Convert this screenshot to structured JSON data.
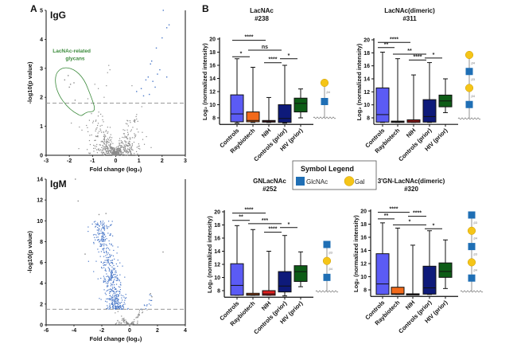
{
  "panels": {
    "A": "A",
    "B": "B"
  },
  "legend": {
    "title": "Symbol Legend",
    "items": [
      {
        "label": "GlcNAc",
        "shape": "square",
        "color": "#1f6fb5"
      },
      {
        "label": "Gal",
        "shape": "circle",
        "color": "#f5c518"
      }
    ]
  },
  "colors": {
    "nonsig_point": "#8a8a8a",
    "sig_point": "#4a78c8",
    "threshold_line": "#9a9a9a",
    "annotation": "#3a8a3a",
    "glcnac": "#1f6fb5",
    "gal": "#f5c518"
  },
  "chart_data": [
    {
      "type": "scatter",
      "id": "volcano-igg",
      "title": "IgG",
      "xlabel": "Fold change (log2)",
      "ylabel": "-log10(p value)",
      "xlim": [
        -3,
        3
      ],
      "ylim": [
        0,
        5
      ],
      "xticks": [
        -3,
        -2,
        -1,
        0,
        1,
        2,
        3
      ],
      "yticks": [
        0,
        1,
        2,
        3,
        4,
        5
      ],
      "threshold": 1.8,
      "annotation": {
        "line1": "LacNAc-related",
        "line2": "glycans"
      },
      "highlighted_points": [
        {
          "x": -2.2,
          "y": 2.6
        },
        {
          "x": -2.05,
          "y": 2.75
        },
        {
          "x": -1.95,
          "y": 2.45
        },
        {
          "x": -1.8,
          "y": 2.5
        },
        {
          "x": -1.75,
          "y": 1.9
        },
        {
          "x": -2.0,
          "y": 2.35
        },
        {
          "x": 2.05,
          "y": 5.0
        },
        {
          "x": 2.3,
          "y": 4.5
        },
        {
          "x": 2.2,
          "y": 4.4
        },
        {
          "x": 2.0,
          "y": 4.05
        },
        {
          "x": 1.75,
          "y": 3.7
        },
        {
          "x": 1.55,
          "y": 3.25
        },
        {
          "x": 1.5,
          "y": 3.15
        },
        {
          "x": 1.9,
          "y": 2.95
        },
        {
          "x": 2.2,
          "y": 2.7
        },
        {
          "x": 1.8,
          "y": 2.8
        },
        {
          "x": 1.4,
          "y": 2.7
        },
        {
          "x": 1.3,
          "y": 2.6
        },
        {
          "x": 1.6,
          "y": 2.55
        },
        {
          "x": 1.1,
          "y": 2.3
        },
        {
          "x": 1.2,
          "y": 2.05
        },
        {
          "x": 1.45,
          "y": 2.1
        },
        {
          "x": 0.9,
          "y": 2.2
        },
        {
          "x": 1.7,
          "y": 2.35
        }
      ],
      "nonsig_cloud": "v-shaped cloud of ~700 points centred at x=0, y<1.8"
    },
    {
      "type": "scatter",
      "id": "volcano-igm",
      "title": "IgM",
      "xlabel": "Fold change (log2)",
      "ylabel": "-log10(p value)",
      "xlim": [
        -6,
        4
      ],
      "ylim": [
        0,
        14
      ],
      "xticks": [
        -6,
        -4,
        -2,
        0,
        2,
        4
      ],
      "yticks": [
        0,
        2,
        4,
        6,
        8,
        10,
        12,
        14
      ],
      "threshold": 1.5,
      "highlighted_points": [
        {
          "x": -3.9,
          "y": 14.0
        },
        {
          "x": -3.7,
          "y": 11.9
        },
        {
          "x": -2.2,
          "y": 10.6
        },
        {
          "x": -1.7,
          "y": 10.7
        },
        {
          "x": -3.2,
          "y": 6.8
        },
        {
          "x": 2.4,
          "y": 7.0
        },
        {
          "x": 1.5,
          "y": 3.0
        },
        {
          "x": 1.6,
          "y": 2.7
        }
      ],
      "sig_cloud": "dense blue cloud from x≈-2.8 to -0.5, y from 1.5 to 10",
      "nonsig_cloud": "grey points near x=0, y<1.5"
    },
    {
      "type": "box",
      "id": "box-238",
      "title": "LacNAc",
      "subtitle": "#238",
      "ylabel": "Log2 (normalized intensity)",
      "ylim": [
        7,
        20
      ],
      "yticks": [
        8,
        10,
        12,
        14,
        16,
        18,
        20
      ],
      "categories": [
        "Controls",
        "Raybiotech",
        "NIH",
        "Controls (prior)",
        "HIV (prior)"
      ],
      "box_colors": [
        "#5b5bf5",
        "#f26a1b",
        "#8b1a2a",
        "#0e1a7a",
        "#0d5c16"
      ],
      "boxes": [
        {
          "min": 7.2,
          "q1": 7.4,
          "median": 8.6,
          "q3": 11.5,
          "max": 17.0
        },
        {
          "min": 7.3,
          "q1": 7.4,
          "median": 7.6,
          "q3": 8.9,
          "max": 15.7
        },
        {
          "min": 7.3,
          "q1": 7.35,
          "median": 7.5,
          "q3": 7.6,
          "max": 11.1
        },
        {
          "min": 7.2,
          "q1": 7.3,
          "median": 7.9,
          "q3": 10.0,
          "max": 16.0
        },
        {
          "min": 8.0,
          "q1": 8.9,
          "median": 10.2,
          "q3": 11.0,
          "max": 12.4
        }
      ],
      "significance": [
        {
          "from": 0,
          "to": 2,
          "label": "****",
          "y": 19.8
        },
        {
          "from": 0,
          "to": 1,
          "label": "*",
          "y": 17.3
        },
        {
          "from": 1,
          "to": 3,
          "label": "ns",
          "y": 18.3
        },
        {
          "from": 2,
          "to": 3,
          "label": "****",
          "y": 16.4
        },
        {
          "from": 3,
          "to": 4,
          "label": "*",
          "y": 17.0
        }
      ],
      "glycan": [
        {
          "type": "gal",
          "link": "β4"
        },
        {
          "type": "glcnac"
        }
      ]
    },
    {
      "type": "box",
      "id": "box-311",
      "title": "LacNAc(dimeric)",
      "subtitle": "#311",
      "ylabel": "Log2 (normalized intensity)",
      "ylim": [
        7,
        20
      ],
      "yticks": [
        8,
        10,
        12,
        14,
        16,
        18,
        20
      ],
      "categories": [
        "Controls",
        "Raybiotech",
        "NIH",
        "Controls (prior)",
        "HIV (prior)"
      ],
      "box_colors": [
        "#5b5bf5",
        "#3a1010",
        "#e02020",
        "#0e1a7a",
        "#0d5c16"
      ],
      "boxes": [
        {
          "min": 7.3,
          "q1": 7.35,
          "median": 8.5,
          "q3": 12.6,
          "max": 18.1
        },
        {
          "min": 7.3,
          "q1": 7.3,
          "median": 7.4,
          "q3": 7.5,
          "max": 17.1
        },
        {
          "min": 7.3,
          "q1": 7.3,
          "median": 7.5,
          "q3": 7.7,
          "max": 14.6
        },
        {
          "min": 7.3,
          "q1": 7.35,
          "median": 8.2,
          "q3": 10.8,
          "max": 16.5
        },
        {
          "min": 8.8,
          "q1": 9.7,
          "median": 10.6,
          "q3": 11.5,
          "max": 14.0
        }
      ],
      "significance": [
        {
          "from": 0,
          "to": 2,
          "label": "****",
          "y": 19.6
        },
        {
          "from": 0,
          "to": 1,
          "label": "**",
          "y": 18.8
        },
        {
          "from": 1,
          "to": 3,
          "label": "**",
          "y": 17.8
        },
        {
          "from": 2,
          "to": 3,
          "label": "****",
          "y": 16.9
        },
        {
          "from": 3,
          "to": 4,
          "label": "*",
          "y": 17.2
        }
      ],
      "glycan": [
        {
          "type": "gal",
          "link": "β4"
        },
        {
          "type": "glcnac",
          "link": "β3"
        },
        {
          "type": "gal",
          "link": "β4"
        },
        {
          "type": "glcnac"
        }
      ]
    },
    {
      "type": "box",
      "id": "box-252",
      "title": "GNLacNAc",
      "subtitle": "#252",
      "ylabel": "Log2 (normalized intensity)",
      "ylim": [
        7,
        20
      ],
      "yticks": [
        8,
        10,
        12,
        14,
        16,
        18,
        20
      ],
      "categories": [
        "Controls",
        "Raybiotech",
        "NIH",
        "Controls (prior)",
        "HIV (prior)"
      ],
      "box_colors": [
        "#5b5bf5",
        "#f26a1b",
        "#e02020",
        "#0e1a7a",
        "#0d5c16"
      ],
      "boxes": [
        {
          "min": 7.3,
          "q1": 7.3,
          "median": 8.8,
          "q3": 12.1,
          "max": 17.9
        },
        {
          "min": 7.3,
          "q1": 7.3,
          "median": 7.4,
          "q3": 7.6,
          "max": 17.3
        },
        {
          "min": 7.3,
          "q1": 7.3,
          "median": 7.5,
          "q3": 8.0,
          "max": 14.0
        },
        {
          "min": 7.2,
          "q1": 7.8,
          "median": 8.7,
          "q3": 10.9,
          "max": 16.4
        },
        {
          "min": 8.6,
          "q1": 9.4,
          "median": 10.9,
          "q3": 11.8,
          "max": 13.9
        }
      ],
      "significance": [
        {
          "from": 0,
          "to": 2,
          "label": "****",
          "y": 19.8
        },
        {
          "from": 0,
          "to": 1,
          "label": "**",
          "y": 18.7
        },
        {
          "from": 1,
          "to": 3,
          "label": "***",
          "y": 18.2
        },
        {
          "from": 2,
          "to": 3,
          "label": "****",
          "y": 16.9
        },
        {
          "from": 3,
          "to": 4,
          "label": "*",
          "y": 17.6
        }
      ],
      "glycan": [
        {
          "type": "glcnac",
          "link": "β3"
        },
        {
          "type": "gal",
          "link": "β4"
        },
        {
          "type": "glcnac"
        }
      ]
    },
    {
      "type": "box",
      "id": "box-320",
      "title": "3'GN-LacNAc(dimeric)",
      "subtitle": "#320",
      "ylabel": "Log2 (normalized intensity)",
      "ylim": [
        7,
        20
      ],
      "yticks": [
        8,
        10,
        12,
        14,
        16,
        18,
        20
      ],
      "categories": [
        "Controls",
        "Raybiotech",
        "NIH",
        "Controls (prior)",
        "HIV (prior)"
      ],
      "box_colors": [
        "#5b5bf5",
        "#f26a1b",
        "#2a0a0a",
        "#0e1a7a",
        "#0d5c16"
      ],
      "boxes": [
        {
          "min": 7.3,
          "q1": 7.3,
          "median": 8.9,
          "q3": 13.5,
          "max": 18.2
        },
        {
          "min": 7.3,
          "q1": 7.3,
          "median": 7.4,
          "q3": 8.4,
          "max": 17.4
        },
        {
          "min": 7.3,
          "q1": 7.3,
          "median": 7.35,
          "q3": 7.4,
          "max": 14.8
        },
        {
          "min": 7.3,
          "q1": 7.35,
          "median": 8.3,
          "q3": 11.6,
          "max": 17.0
        },
        {
          "min": 8.2,
          "q1": 9.9,
          "median": 10.8,
          "q3": 12.1,
          "max": 15.6
        }
      ],
      "significance": [
        {
          "from": 0,
          "to": 2,
          "label": "****",
          "y": 19.8
        },
        {
          "from": 0,
          "to": 1,
          "label": "**",
          "y": 18.8
        },
        {
          "from": 2,
          "to": 3,
          "label": "****",
          "y": 19.2
        },
        {
          "from": 1,
          "to": 3,
          "label": "*",
          "y": 17.9
        },
        {
          "from": 3,
          "to": 4,
          "label": "*",
          "y": 17.3
        }
      ],
      "glycan": [
        {
          "type": "glcnac",
          "link": "β3"
        },
        {
          "type": "gal",
          "link": "β4"
        },
        {
          "type": "glcnac",
          "link": "β3"
        },
        {
          "type": "gal",
          "link": "β4"
        },
        {
          "type": "glcnac"
        }
      ]
    }
  ]
}
